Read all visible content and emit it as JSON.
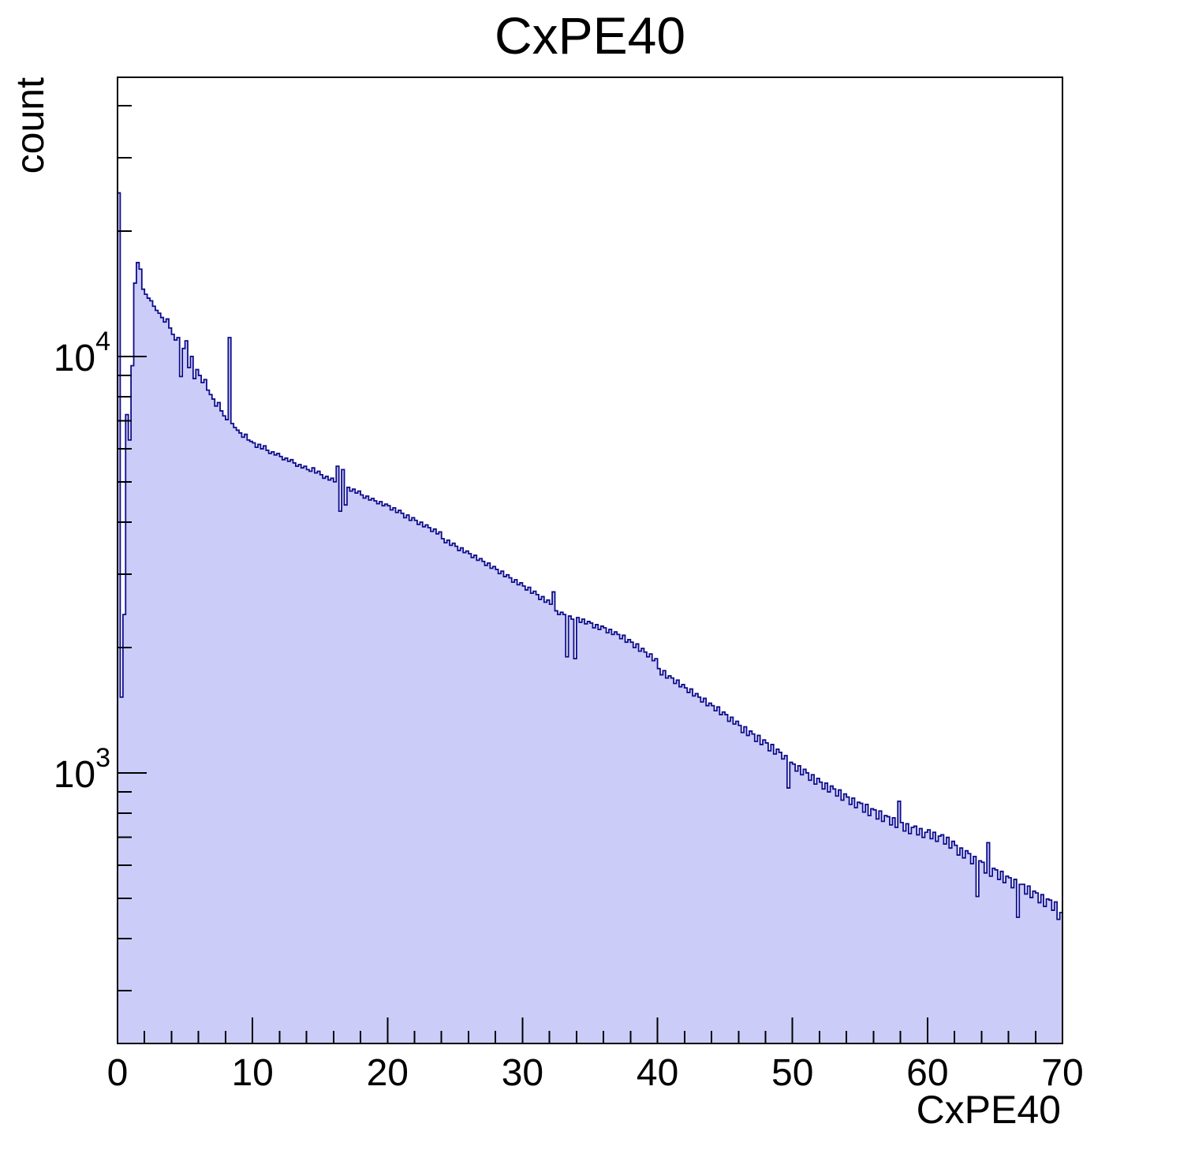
{
  "chart_data": {
    "type": "histogram",
    "title": "CxPE40",
    "xlabel": "CxPE40",
    "ylabel": "count",
    "legend": null,
    "grid": false,
    "style": {
      "fill_color": "#ccccf8",
      "line_color": "#0d0d8c",
      "axis_color": "#000000",
      "background": "#ffffff"
    },
    "x_axis": {
      "min": 0,
      "max": 70,
      "major_ticks": [
        0,
        10,
        20,
        30,
        40,
        50,
        60,
        70
      ],
      "major_tick_labels": [
        "0",
        "10",
        "20",
        "30",
        "40",
        "50",
        "60",
        "70"
      ],
      "minor_ticks": [
        2,
        4,
        6,
        8,
        12,
        14,
        16,
        18,
        22,
        24,
        26,
        28,
        32,
        34,
        36,
        38,
        42,
        44,
        46,
        48,
        52,
        54,
        56,
        58,
        62,
        64,
        66,
        68
      ]
    },
    "y_axis": {
      "scale": "log",
      "min": 224,
      "max": 46800,
      "major_ticks": [
        {
          "value": 1000,
          "mantissa": "10",
          "exponent": "3"
        },
        {
          "value": 10000,
          "mantissa": "10",
          "exponent": "4"
        }
      ],
      "minor_ticks": [
        300,
        400,
        500,
        600,
        700,
        800,
        900,
        2000,
        3000,
        4000,
        5000,
        6000,
        7000,
        8000,
        9000,
        20000,
        30000,
        40000
      ]
    },
    "bins": {
      "start": 0,
      "width": 0.2,
      "counts": [
        24700,
        1520,
        2400,
        7250,
        6300,
        9500,
        15000,
        16800,
        16200,
        14500,
        14100,
        13800,
        13600,
        13200,
        12900,
        12700,
        12400,
        12100,
        12300,
        11700,
        11300,
        10950,
        11100,
        8950,
        10450,
        10900,
        9400,
        10000,
        8850,
        9300,
        9000,
        8650,
        8800,
        8300,
        8100,
        7900,
        7600,
        7750,
        7400,
        7200,
        7050,
        11100,
        6900,
        6750,
        6650,
        6550,
        6400,
        6500,
        6300,
        6250,
        6200,
        6050,
        6150,
        6000,
        6100,
        5950,
        5850,
        5900,
        5800,
        5850,
        5750,
        5650,
        5700,
        5600,
        5650,
        5550,
        5450,
        5500,
        5400,
        5450,
        5350,
        5300,
        5400,
        5250,
        5300,
        5200,
        5100,
        5150,
        5050,
        5100,
        5000,
        5450,
        4250,
        5350,
        4400,
        4850,
        4750,
        4800,
        4700,
        4750,
        4650,
        4570,
        4620,
        4520,
        4560,
        4500,
        4430,
        4480,
        4380,
        4420,
        4380,
        4280,
        4330,
        4220,
        4270,
        4200,
        4100,
        4160,
        4040,
        4100,
        4040,
        3950,
        4000,
        3900,
        3940,
        3880,
        3800,
        3850,
        3750,
        3790,
        3650,
        3570,
        3620,
        3520,
        3560,
        3500,
        3420,
        3470,
        3380,
        3410,
        3360,
        3290,
        3330,
        3240,
        3270,
        3220,
        3150,
        3190,
        3100,
        3130,
        3080,
        3010,
        3050,
        2960,
        2990,
        2940,
        2870,
        2910,
        2830,
        2860,
        2810,
        2750,
        2790,
        2700,
        2730,
        2680,
        2610,
        2650,
        2570,
        2600,
        2540,
        2720,
        2450,
        2400,
        2430,
        2400,
        1900,
        2380,
        2340,
        1880,
        2360,
        2300,
        2340,
        2280,
        2310,
        2290,
        2230,
        2270,
        2210,
        2250,
        2230,
        2170,
        2210,
        2150,
        2180,
        2150,
        2100,
        2140,
        2060,
        2090,
        2060,
        2000,
        2040,
        1960,
        1990,
        1950,
        1900,
        1930,
        1860,
        1880,
        1780,
        1720,
        1760,
        1690,
        1710,
        1690,
        1640,
        1670,
        1610,
        1630,
        1600,
        1560,
        1590,
        1530,
        1550,
        1520,
        1480,
        1510,
        1450,
        1470,
        1450,
        1410,
        1440,
        1380,
        1400,
        1380,
        1330,
        1360,
        1310,
        1330,
        1300,
        1250,
        1290,
        1230,
        1260,
        1240,
        1190,
        1230,
        1170,
        1200,
        1180,
        1130,
        1170,
        1110,
        1140,
        1120,
        1080,
        1100,
        920,
        1060,
        1050,
        1010,
        1040,
        990,
        1020,
        1000,
        960,
        990,
        940,
        970,
        950,
        915,
        945,
        900,
        930,
        915,
        880,
        910,
        860,
        890,
        875,
        840,
        870,
        825,
        850,
        845,
        805,
        840,
        790,
        820,
        815,
        775,
        810,
        765,
        790,
        785,
        750,
        780,
        740,
        855,
        760,
        725,
        755,
        715,
        740,
        745,
        710,
        735,
        700,
        720,
        730,
        695,
        720,
        685,
        705,
        710,
        675,
        700,
        660,
        685,
        670,
        635,
        660,
        625,
        650,
        640,
        605,
        630,
        505,
        615,
        610,
        575,
        680,
        565,
        590,
        585,
        555,
        580,
        545,
        565,
        560,
        530,
        555,
        450,
        540,
        540,
        512,
        535,
        502,
        520,
        515,
        488,
        510,
        478,
        498,
        495,
        468,
        490,
        445,
        462
      ]
    }
  }
}
